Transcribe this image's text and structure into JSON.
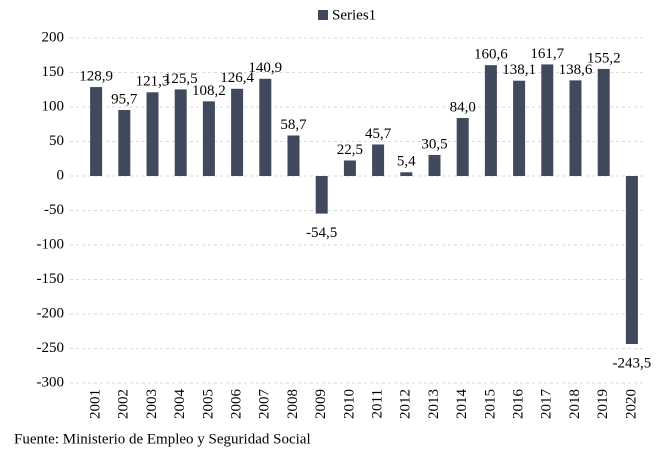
{
  "chart_data": {
    "type": "bar",
    "categories": [
      "2001",
      "2002",
      "2003",
      "2004",
      "2005",
      "2006",
      "2007",
      "2008",
      "2009",
      "2010",
      "2011",
      "2012",
      "2013",
      "2014",
      "2015",
      "2016",
      "2017",
      "2018",
      "2019",
      "2020"
    ],
    "series": [
      {
        "name": "Series1",
        "color": "#404a5c",
        "values": [
          128.9,
          95.7,
          121.3,
          125.5,
          108.2,
          126.4,
          140.9,
          58.7,
          -54.5,
          22.5,
          45.7,
          5.4,
          30.5,
          84.0,
          160.6,
          138.1,
          161.7,
          138.6,
          155.2,
          -243.5
        ],
        "value_labels": [
          "128,9",
          "95,7",
          "121,3",
          "125,5",
          "108,2",
          "126,4",
          "140,9",
          "58,7",
          "-54,5",
          "22,5",
          "45,7",
          "5,4",
          "30,5",
          "84,0",
          "160,6",
          "138,1",
          "161,7",
          "138,6",
          "155,2",
          "-243,5"
        ]
      }
    ],
    "ylim": [
      -300,
      200
    ],
    "yticks": [
      -300,
      -250,
      -200,
      -150,
      -100,
      -50,
      0,
      50,
      100,
      150,
      200
    ],
    "grid": true,
    "legend": "top",
    "label_color": "#000000",
    "negative_label_color": "#ff0000",
    "source": "Fuente:  Ministerio de Empleo  y Seguridad Social"
  }
}
